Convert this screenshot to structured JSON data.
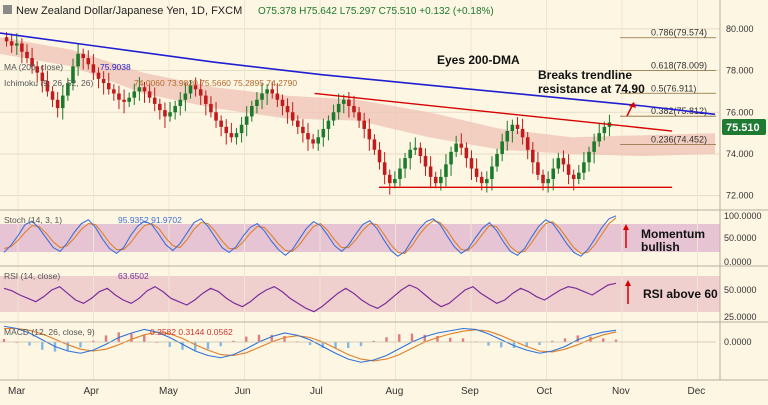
{
  "header": {
    "title": "New Zealand Dollar/Japanese Yen, 1D, FXCM",
    "ohlc": "O75.378  H75.642  L75.297  C75.510  +0.132 (+0.18%)"
  },
  "main_panel": {
    "legend": [
      {
        "label": "MA (200, close)",
        "value": "75.9038"
      },
      {
        "label": "Ichimoku (9, 26, 52, 26)",
        "value": "74.0060   73.9820   75.5660   75.2895   74.2790"
      }
    ],
    "price_badge": "75.510",
    "annotations": {
      "dma": "Eyes 200-DMA",
      "trendline_line1": "Breaks trendline",
      "trendline_line2": "resistance at 74.90"
    },
    "fib_labels": [
      "0.786(79.574)",
      "0.618(78.009)",
      "0.5(76.911)",
      "0.382(75.812)",
      "0.236(74.452)"
    ]
  },
  "stoch_panel": {
    "legend": "Stoch (14, 3, 1)",
    "values": "95.9352   91.9702",
    "annotation_line1": "Momentum",
    "annotation_line2": "bullish",
    "ticks": [
      "100.0000",
      "50.0000",
      "0.0000"
    ]
  },
  "rsi_panel": {
    "legend": "RSI (14, close)",
    "value": "63.6502",
    "annotation": "RSI above 60",
    "ticks": [
      "50.0000",
      "25.0000"
    ]
  },
  "macd_panel": {
    "legend": "MACD (12, 26, close, 9)",
    "values": "0.2582   0.3144   0.0562",
    "ticks": [
      "0.0000"
    ]
  },
  "colors": {
    "background": "#fdf6e3",
    "ma200": "#1f1fd1",
    "cloud": "#efc2b6",
    "trendline": "#d60000",
    "bull_candle": "#1b7a2b",
    "bear_candle": "#c11b1b",
    "price_badge": "#1f7a32",
    "fib_line": "#8a6d3b",
    "stoch_k": "#3f6fd6",
    "stoch_d": "#e0802a",
    "rsi": "#7a2f9a",
    "macd": "#2f73d6",
    "signal": "#e0802a"
  },
  "chart_data": {
    "type": "candlestick",
    "title": "New Zealand Dollar/Japanese Yen, 1D, FXCM",
    "x_labels": [
      "Mar",
      "Apr",
      "May",
      "Jun",
      "Jul",
      "Aug",
      "Sep",
      "Oct",
      "Nov",
      "Dec"
    ],
    "y_ticks": [
      72.0,
      74.0,
      76.0,
      78.0,
      80.0
    ],
    "ylim": [
      71.6,
      81.0
    ],
    "last_close": 75.51,
    "close_series_approx": [
      79.4,
      79.2,
      79.3,
      78.9,
      78.6,
      78.2,
      77.9,
      77.5,
      77.0,
      76.6,
      76.2,
      76.8,
      77.4,
      78.2,
      78.8,
      78.6,
      78.3,
      77.9,
      77.6,
      77.4,
      77.1,
      76.9,
      76.6,
      76.5,
      76.7,
      77.0,
      77.2,
      77.0,
      76.7,
      76.4,
      76.1,
      75.8,
      76.0,
      76.3,
      76.6,
      76.9,
      77.3,
      77.1,
      76.8,
      76.4,
      76.0,
      75.6,
      75.3,
      75.0,
      74.8,
      75.0,
      75.4,
      75.8,
      76.3,
      76.6,
      76.9,
      77.1,
      76.9,
      76.6,
      76.3,
      76.0,
      75.6,
      75.3,
      75.0,
      74.7,
      74.5,
      74.8,
      75.2,
      75.6,
      76.0,
      76.4,
      76.6,
      76.3,
      76.0,
      75.6,
      75.2,
      74.7,
      74.2,
      73.6,
      73.0,
      72.6,
      72.8,
      73.3,
      73.8,
      74.2,
      74.3,
      73.9,
      73.4,
      72.9,
      72.6,
      72.9,
      73.5,
      74.1,
      74.5,
      74.3,
      73.8,
      73.3,
      72.9,
      72.6,
      72.8,
      73.4,
      74.0,
      74.6,
      75.1,
      75.4,
      75.2,
      74.8,
      74.2,
      73.6,
      73.0,
      72.6,
      72.8,
      73.3,
      73.8,
      73.5,
      73.0,
      72.8,
      73.1,
      73.6,
      74.1,
      74.6,
      75.0,
      75.3,
      75.51
    ],
    "ma200_series": [
      {
        "x": 0.0,
        "y": 79.8
      },
      {
        "x": 0.15,
        "y": 79.1
      },
      {
        "x": 0.3,
        "y": 78.4
      },
      {
        "x": 0.45,
        "y": 77.8
      },
      {
        "x": 0.6,
        "y": 77.3
      },
      {
        "x": 0.75,
        "y": 76.8
      },
      {
        "x": 0.9,
        "y": 76.3
      },
      {
        "x": 1.0,
        "y": 75.9
      }
    ],
    "cloud_upper": [
      {
        "x": 0.0,
        "y": 79.6
      },
      {
        "x": 0.1,
        "y": 79.0
      },
      {
        "x": 0.2,
        "y": 77.9
      },
      {
        "x": 0.3,
        "y": 77.2
      },
      {
        "x": 0.4,
        "y": 76.8
      },
      {
        "x": 0.5,
        "y": 76.6
      },
      {
        "x": 0.6,
        "y": 76.0
      },
      {
        "x": 0.7,
        "y": 75.2
      },
      {
        "x": 0.8,
        "y": 74.8
      },
      {
        "x": 0.9,
        "y": 74.9
      },
      {
        "x": 1.0,
        "y": 75.0
      }
    ],
    "cloud_lower": [
      {
        "x": 0.0,
        "y": 78.8
      },
      {
        "x": 0.1,
        "y": 78.2
      },
      {
        "x": 0.2,
        "y": 76.9
      },
      {
        "x": 0.3,
        "y": 76.2
      },
      {
        "x": 0.4,
        "y": 75.7
      },
      {
        "x": 0.5,
        "y": 75.6
      },
      {
        "x": 0.6,
        "y": 74.8
      },
      {
        "x": 0.7,
        "y": 74.2
      },
      {
        "x": 0.8,
        "y": 74.0
      },
      {
        "x": 0.9,
        "y": 73.9
      },
      {
        "x": 1.0,
        "y": 74.0
      }
    ],
    "trendline": {
      "from": {
        "x": 0.44,
        "y": 76.9
      },
      "to": {
        "x": 0.94,
        "y": 75.1
      }
    },
    "support_line": {
      "from": {
        "x": 0.53,
        "y": 72.4
      },
      "to": {
        "x": 0.94,
        "y": 72.4
      }
    },
    "fib_levels": [
      {
        "ratio": "0.786",
        "price": 79.574
      },
      {
        "ratio": "0.618",
        "price": 78.009
      },
      {
        "ratio": "0.5",
        "price": 76.911
      },
      {
        "ratio": "0.382",
        "price": 75.812
      },
      {
        "ratio": "0.236",
        "price": 74.452
      }
    ],
    "stoch_k": [
      20,
      35,
      55,
      78,
      85,
      70,
      50,
      30,
      22,
      40,
      62,
      80,
      88,
      72,
      48,
      28,
      18,
      30,
      55,
      75,
      85,
      78,
      58,
      36,
      24,
      38,
      60,
      82,
      90,
      74,
      52,
      30,
      20,
      32,
      54,
      72,
      80,
      65,
      44,
      26,
      14,
      26,
      48,
      70,
      84,
      76,
      56,
      34,
      22,
      36,
      58,
      78,
      86,
      70,
      46,
      24,
      12,
      22,
      46,
      68,
      84,
      90,
      78,
      54,
      32,
      18,
      28,
      50,
      70,
      82,
      66,
      42,
      22,
      14,
      28,
      52,
      74,
      88,
      80,
      60,
      38,
      20,
      12,
      26,
      48,
      72,
      90,
      96
    ],
    "stoch_d": [
      28,
      32,
      45,
      62,
      76,
      74,
      60,
      42,
      30,
      34,
      50,
      68,
      80,
      78,
      60,
      40,
      26,
      26,
      40,
      60,
      76,
      80,
      70,
      50,
      34,
      30,
      46,
      68,
      82,
      80,
      64,
      44,
      28,
      28,
      42,
      60,
      74,
      72,
      56,
      38,
      24,
      22,
      36,
      56,
      74,
      80,
      66,
      46,
      30,
      30,
      46,
      66,
      80,
      78,
      58,
      36,
      20,
      18,
      34,
      56,
      74,
      86,
      82,
      66,
      44,
      26,
      24,
      38,
      58,
      76,
      74,
      54,
      32,
      20,
      22,
      40,
      62,
      80,
      84,
      70,
      50,
      30,
      18,
      20,
      36,
      58,
      80,
      92
    ],
    "rsi": [
      58,
      55,
      50,
      46,
      42,
      48,
      56,
      60,
      52,
      44,
      40,
      46,
      54,
      58,
      50,
      44,
      40,
      46,
      55,
      60,
      54,
      46,
      42,
      38,
      44,
      52,
      58,
      54,
      46,
      40,
      36,
      42,
      50,
      56,
      60,
      54,
      46,
      40,
      34,
      30,
      36,
      44,
      52,
      58,
      52,
      44,
      38,
      34,
      40,
      48,
      56,
      62,
      58,
      50,
      42,
      36,
      40,
      48,
      56,
      60,
      52,
      46,
      40,
      44,
      52,
      58,
      54,
      48,
      44,
      50,
      56,
      60,
      58,
      54,
      50,
      56,
      62,
      64
    ],
    "macd": [
      0.35,
      0.3,
      0.2,
      0.05,
      -0.1,
      -0.2,
      -0.25,
      -0.18,
      -0.05,
      0.1,
      0.2,
      0.28,
      0.22,
      0.1,
      -0.05,
      -0.2,
      -0.3,
      -0.35,
      -0.28,
      -0.15,
      0.0,
      0.12,
      0.2,
      0.15,
      0.05,
      -0.1,
      -0.25,
      -0.38,
      -0.45,
      -0.4,
      -0.3,
      -0.15,
      0.0,
      0.12,
      0.2,
      0.25,
      0.3,
      0.28,
      0.18,
      0.05,
      -0.08,
      -0.18,
      -0.25,
      -0.2,
      -0.1,
      0.05,
      0.15,
      0.22,
      0.26
    ],
    "signal": [
      0.3,
      0.3,
      0.26,
      0.18,
      0.06,
      -0.06,
      -0.16,
      -0.2,
      -0.16,
      -0.06,
      0.06,
      0.16,
      0.22,
      0.18,
      0.08,
      -0.06,
      -0.18,
      -0.28,
      -0.3,
      -0.24,
      -0.12,
      0.0,
      0.1,
      0.14,
      0.1,
      0.0,
      -0.14,
      -0.28,
      -0.38,
      -0.42,
      -0.38,
      -0.28,
      -0.14,
      0.0,
      0.1,
      0.18,
      0.24,
      0.27,
      0.24,
      0.14,
      0.02,
      -0.1,
      -0.2,
      -0.22,
      -0.16,
      -0.06,
      0.06,
      0.16,
      0.22
    ]
  }
}
